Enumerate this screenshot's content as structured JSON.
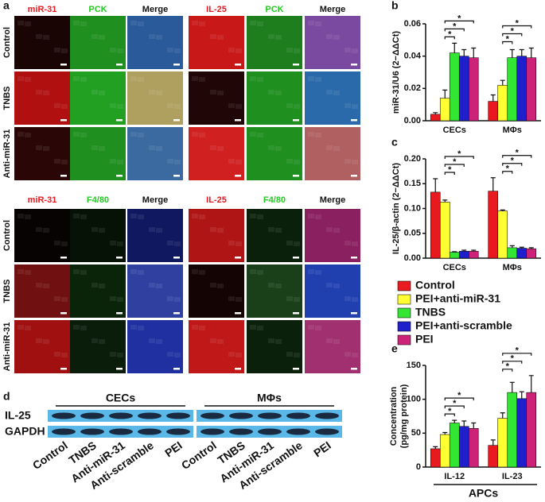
{
  "panels": {
    "a": {
      "label": "a",
      "top": {
        "headers": [
          "miR-31",
          "PCK",
          "Merge",
          "IL-25",
          "PCK",
          "Merge"
        ],
        "rows": [
          "Control",
          "TNBS",
          "Anti-miR-31"
        ]
      },
      "bottom": {
        "headers": [
          "miR-31",
          "F4/80",
          "Merge",
          "IL-25",
          "F4/80",
          "Merge"
        ],
        "rows": [
          "Control",
          "TNBS",
          "Anti-miR-31"
        ]
      }
    },
    "d": {
      "label": "d",
      "groups": [
        "CECs",
        "MΦs"
      ],
      "rows": [
        "IL-25",
        "GAPDH"
      ],
      "lanes": [
        "Control",
        "TNBS",
        "Anti-miR-31",
        "Anti-scramble",
        "PEI"
      ]
    }
  },
  "significance_label": "*",
  "chart_data": [
    {
      "type": "bar",
      "panel": "b",
      "y_label": "miR-31/U6 (2−ΔΔCt)",
      "categories": [
        "CECs",
        "MΦs"
      ],
      "ylim": [
        0,
        0.06
      ],
      "yticks": [
        {
          "value": 0,
          "label": "0.00"
        },
        {
          "value": 0.02,
          "label": "0.02"
        },
        {
          "value": 0.04,
          "label": "0.04"
        },
        {
          "value": 0.06,
          "label": "0.06"
        }
      ],
      "series": [
        {
          "name": "Control",
          "color": "#e8191f",
          "values": [
            0.004,
            0.012
          ],
          "errors": [
            0.001,
            0.004
          ]
        },
        {
          "name": "PEI+anti-miR-31",
          "color": "#ffff33",
          "values": [
            0.014,
            0.022
          ],
          "errors": [
            0.005,
            0.003
          ]
        },
        {
          "name": "TNBS",
          "color": "#33e633",
          "values": [
            0.042,
            0.039
          ],
          "errors": [
            0.006,
            0.005
          ]
        },
        {
          "name": "PEI+anti-scramble",
          "color": "#1f1fcc",
          "values": [
            0.04,
            0.04
          ],
          "errors": [
            0.004,
            0.004
          ]
        },
        {
          "name": "PEI",
          "color": "#cc2277",
          "values": [
            0.039,
            0.039
          ],
          "errors": [
            0.006,
            0.006
          ]
        }
      ]
    },
    {
      "type": "bar",
      "panel": "c",
      "y_label": "IL-25/β-actin (2−ΔΔCt)",
      "categories": [
        "CECs",
        "MΦs"
      ],
      "ylim": [
        0,
        0.2
      ],
      "yticks": [
        {
          "value": 0,
          "label": "0.00"
        },
        {
          "value": 0.05,
          "label": "0.05"
        },
        {
          "value": 0.1,
          "label": "0.10"
        },
        {
          "value": 0.15,
          "label": "0.15"
        },
        {
          "value": 0.2,
          "label": "0.20"
        }
      ],
      "series": [
        {
          "name": "Control",
          "color": "#e8191f",
          "values": [
            0.133,
            0.135
          ],
          "errors": [
            0.027,
            0.027
          ]
        },
        {
          "name": "PEI+anti-miR-31",
          "color": "#ffff33",
          "values": [
            0.113,
            0.095
          ],
          "errors": [
            0.004,
            0.002
          ]
        },
        {
          "name": "TNBS",
          "color": "#33e633",
          "values": [
            0.012,
            0.021
          ],
          "errors": [
            0.001,
            0.004
          ]
        },
        {
          "name": "PEI+anti-scramble",
          "color": "#1f1fcc",
          "values": [
            0.014,
            0.02
          ],
          "errors": [
            0.002,
            0.002
          ]
        },
        {
          "name": "PEI",
          "color": "#cc2277",
          "values": [
            0.014,
            0.019
          ],
          "errors": [
            0.002,
            0.002
          ]
        }
      ]
    },
    {
      "type": "bar",
      "panel": "e",
      "y_label": [
        "Concentration",
        "(pg/mg protein)"
      ],
      "x_label": "APCs",
      "categories": [
        "IL-12",
        "IL-23"
      ],
      "ylim": [
        0,
        150
      ],
      "yticks": [
        0,
        50,
        100,
        150
      ],
      "series": [
        {
          "name": "Control",
          "color": "#e8191f",
          "values": [
            27,
            32
          ],
          "errors": [
            3,
            8
          ]
        },
        {
          "name": "PEI+anti-miR-31",
          "color": "#ffff33",
          "values": [
            48,
            72
          ],
          "errors": [
            3,
            8
          ]
        },
        {
          "name": "TNBS",
          "color": "#33e633",
          "values": [
            65,
            110
          ],
          "errors": [
            4,
            15
          ]
        },
        {
          "name": "PEI+anti-scramble",
          "color": "#1f1fcc",
          "values": [
            60,
            101
          ],
          "errors": [
            8,
            10
          ]
        },
        {
          "name": "PEI",
          "color": "#cc2277",
          "values": [
            57,
            110
          ],
          "errors": [
            8,
            25
          ]
        }
      ]
    }
  ]
}
